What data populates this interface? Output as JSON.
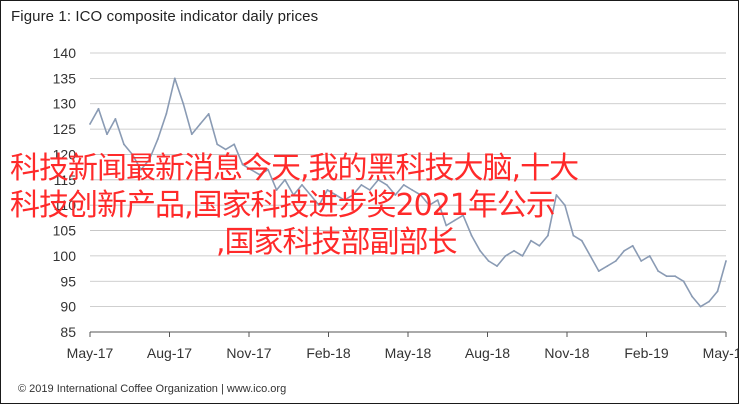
{
  "title": "Figure 1: ICO composite indicator daily prices",
  "footer": "© 2019 International Coffee Organization | www.ico.org",
  "overlay_lines": [
    "科技新闻最新消息今天,我的黑科技大脑,十大",
    "科技创新产品,国家科技进步奖2021年公示",
    ",国家科技部副部长"
  ],
  "colors": {
    "series": "#8a9bb4",
    "overlay_text": "#ff2a2a",
    "grid": "#bfbfbf",
    "axis": "#555555"
  },
  "chart_data": {
    "type": "line",
    "title": "Figure 1: ICO composite indicator daily prices",
    "xlabel": "",
    "ylabel": "",
    "ylim": [
      85,
      140
    ],
    "yticks": [
      85,
      90,
      95,
      100,
      105,
      110,
      115,
      120,
      125,
      130,
      135,
      140
    ],
    "xticks": [
      "May-17",
      "Aug-17",
      "Nov-17",
      "Feb-18",
      "May-18",
      "Aug-18",
      "Nov-18",
      "Feb-19",
      "May-19"
    ],
    "grid": "horizontal",
    "x": [
      "May-17",
      "May-17",
      "May-17",
      "Jun-17",
      "Jun-17",
      "Jun-17",
      "Jul-17",
      "Jul-17",
      "Jul-17",
      "Aug-17",
      "Aug-17",
      "Aug-17",
      "Aug-17",
      "Sep-17",
      "Sep-17",
      "Sep-17",
      "Oct-17",
      "Oct-17",
      "Oct-17",
      "Nov-17",
      "Nov-17",
      "Nov-17",
      "Dec-17",
      "Dec-17",
      "Dec-17",
      "Jan-18",
      "Jan-18",
      "Jan-18",
      "Feb-18",
      "Feb-18",
      "Feb-18",
      "Mar-18",
      "Mar-18",
      "Mar-18",
      "Apr-18",
      "Apr-18",
      "Apr-18",
      "May-18",
      "May-18",
      "May-18",
      "Jun-18",
      "Jun-18",
      "Jun-18",
      "Jul-18",
      "Jul-18",
      "Jul-18",
      "Aug-18",
      "Aug-18",
      "Aug-18",
      "Sep-18",
      "Sep-18",
      "Sep-18",
      "Oct-18",
      "Oct-18",
      "Oct-18",
      "Nov-18",
      "Nov-18",
      "Nov-18",
      "Dec-18",
      "Dec-18",
      "Dec-18",
      "Jan-19",
      "Jan-19",
      "Jan-19",
      "Feb-19",
      "Feb-19",
      "Feb-19",
      "Mar-19",
      "Mar-19",
      "Mar-19",
      "Apr-19",
      "Apr-19",
      "Apr-19",
      "May-19",
      "May-19",
      "May-19"
    ],
    "series": [
      {
        "values": [
          126,
          129,
          124,
          127,
          122,
          120,
          117,
          119,
          123,
          128,
          135,
          130,
          124,
          126,
          128,
          122,
          121,
          122,
          118,
          117,
          116,
          117,
          113,
          115,
          112,
          114,
          112,
          110,
          113,
          112,
          111,
          112,
          114,
          113,
          115,
          114,
          112,
          114,
          113,
          112,
          110,
          111,
          106,
          107,
          108,
          104,
          101,
          99,
          98,
          100,
          101,
          100,
          103,
          102,
          104,
          112,
          110,
          104,
          103,
          100,
          97,
          98,
          99,
          101,
          102,
          99,
          100,
          97,
          96,
          96,
          95,
          92,
          90,
          91,
          93,
          99
        ]
      }
    ]
  }
}
